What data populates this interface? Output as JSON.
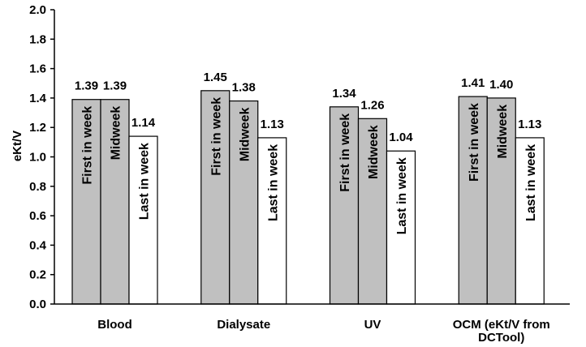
{
  "chart_data": {
    "type": "bar",
    "title": "",
    "xlabel": "",
    "ylabel": "eKt/V",
    "ylim": [
      0,
      2.0
    ],
    "yticks": [
      "0.0",
      "0.2",
      "0.4",
      "0.6",
      "0.8",
      "1.0",
      "1.2",
      "1.4",
      "1.6",
      "1.8",
      "2.0"
    ],
    "grid": false,
    "categories": [
      [
        "Blood"
      ],
      [
        "Dialysate"
      ],
      [
        "UV"
      ],
      [
        "OCM (eKt/V from",
        "DCTool)"
      ]
    ],
    "series": [
      {
        "name": "First in week",
        "color": "#c0c0c0",
        "values": [
          1.39,
          1.45,
          1.34,
          1.41
        ],
        "labels": [
          "1.39",
          "1.45",
          "1.34",
          "1.41"
        ]
      },
      {
        "name": "Midweek",
        "color": "#c0c0c0",
        "values": [
          1.39,
          1.38,
          1.26,
          1.4
        ],
        "labels": [
          "1.39",
          "1.38",
          "1.26",
          "1.40"
        ]
      },
      {
        "name": "Last in week",
        "color": "#ffffff",
        "values": [
          1.14,
          1.13,
          1.04,
          1.13
        ],
        "labels": [
          "1.14",
          "1.13",
          "1.04",
          "1.13"
        ]
      }
    ]
  }
}
